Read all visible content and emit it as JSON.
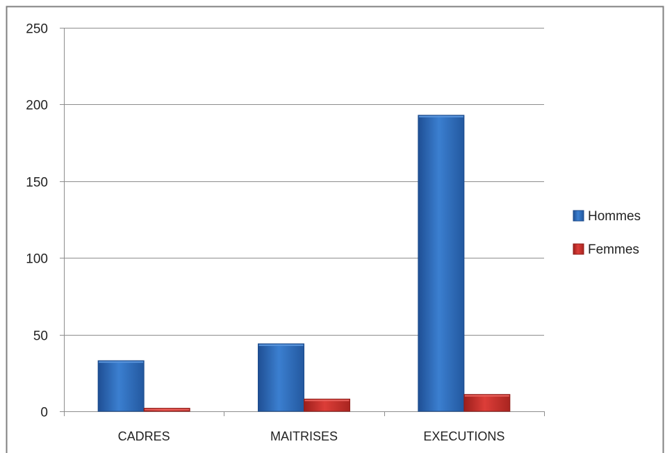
{
  "chart_data": {
    "type": "bar",
    "categories": [
      "CADRES",
      "MAITRISES",
      "EXECUTIONS"
    ],
    "series": [
      {
        "name": "Hommes",
        "values": [
          33,
          44,
          193
        ],
        "color": "#2f6fbf"
      },
      {
        "name": "Femmes",
        "values": [
          2,
          8,
          11
        ],
        "color": "#c23531"
      }
    ],
    "ylim": [
      0,
      250
    ],
    "yticks": [
      0,
      50,
      100,
      150,
      200,
      250
    ],
    "grid": true,
    "legend": "right"
  }
}
